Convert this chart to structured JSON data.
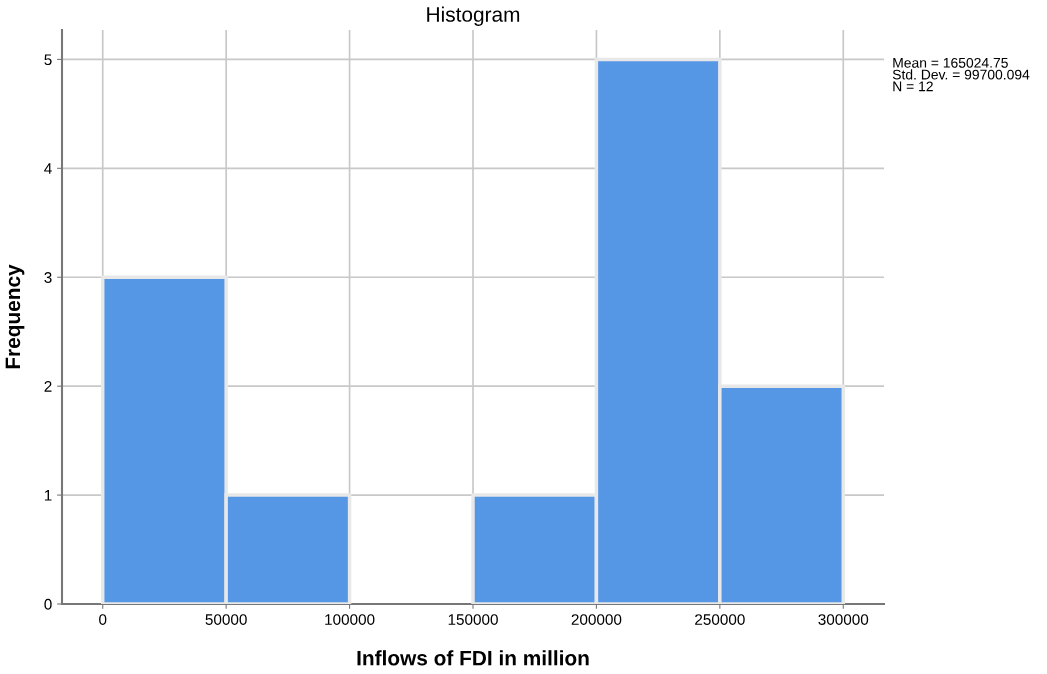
{
  "chart_data": {
    "type": "histogram",
    "title": "Histogram",
    "xlabel": "Inflows of FDI in million",
    "ylabel": "Frequency",
    "bins": [
      0,
      50000,
      100000,
      150000,
      200000,
      250000,
      300000
    ],
    "values": [
      3,
      1,
      0,
      1,
      5,
      2
    ],
    "color": "#5596e5",
    "xlim": [
      -16500,
      316500
    ],
    "ylim": [
      0,
      5.27
    ],
    "xticks": [
      0,
      50000,
      100000,
      150000,
      200000,
      250000,
      300000
    ],
    "yticks": [
      0,
      1,
      2,
      3,
      4,
      5
    ],
    "grid": true,
    "annotations": [
      "Mean = 165024.75",
      "Std. Dev. = 99700.094",
      "N = 12"
    ]
  }
}
